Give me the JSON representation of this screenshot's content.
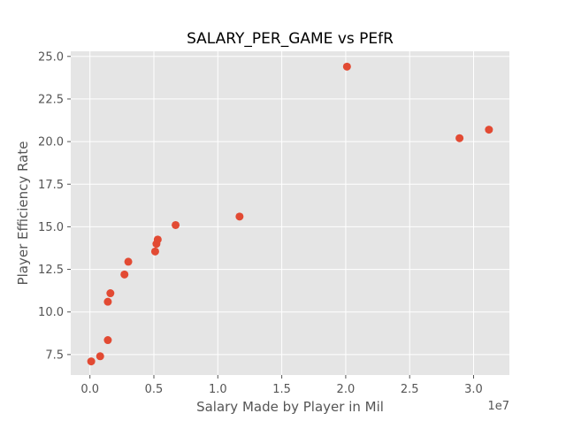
{
  "chart_data": {
    "type": "scatter",
    "title": "SALARY_PER_GAME vs PEfR",
    "xlabel": "Salary Made by Player in Mil",
    "ylabel": "Player Efficiency Rate",
    "x_offset_label": "1e7",
    "x_scale": 10000000,
    "xlim": [
      -1500000,
      32800000
    ],
    "ylim": [
      6.3,
      25.3
    ],
    "x_ticks": [
      0,
      5000000,
      10000000,
      15000000,
      20000000,
      25000000,
      30000000
    ],
    "x_tick_labels": [
      "0.0",
      "0.5",
      "1.0",
      "1.5",
      "2.0",
      "2.5",
      "3.0"
    ],
    "y_ticks": [
      7.5,
      10.0,
      12.5,
      15.0,
      17.5,
      20.0,
      22.5,
      25.0
    ],
    "y_tick_labels": [
      "7.5",
      "10.0",
      "12.5",
      "15.0",
      "17.5",
      "20.0",
      "22.5",
      "25.0"
    ],
    "grid": true,
    "background": "#e5e5e5",
    "grid_color": "#ffffff",
    "marker_color": "#e24a33",
    "points": [
      {
        "x": 100000,
        "y": 7.1
      },
      {
        "x": 800000,
        "y": 7.4
      },
      {
        "x": 1400000,
        "y": 8.35
      },
      {
        "x": 1400000,
        "y": 10.6
      },
      {
        "x": 1600000,
        "y": 11.1
      },
      {
        "x": 2700000,
        "y": 12.2
      },
      {
        "x": 3000000,
        "y": 12.95
      },
      {
        "x": 5100000,
        "y": 13.55
      },
      {
        "x": 5200000,
        "y": 14.0
      },
      {
        "x": 5300000,
        "y": 14.25
      },
      {
        "x": 6700000,
        "y": 15.1
      },
      {
        "x": 11700000,
        "y": 15.6
      },
      {
        "x": 20100000,
        "y": 24.4
      },
      {
        "x": 28900000,
        "y": 20.2
      },
      {
        "x": 31200000,
        "y": 20.7
      }
    ]
  }
}
